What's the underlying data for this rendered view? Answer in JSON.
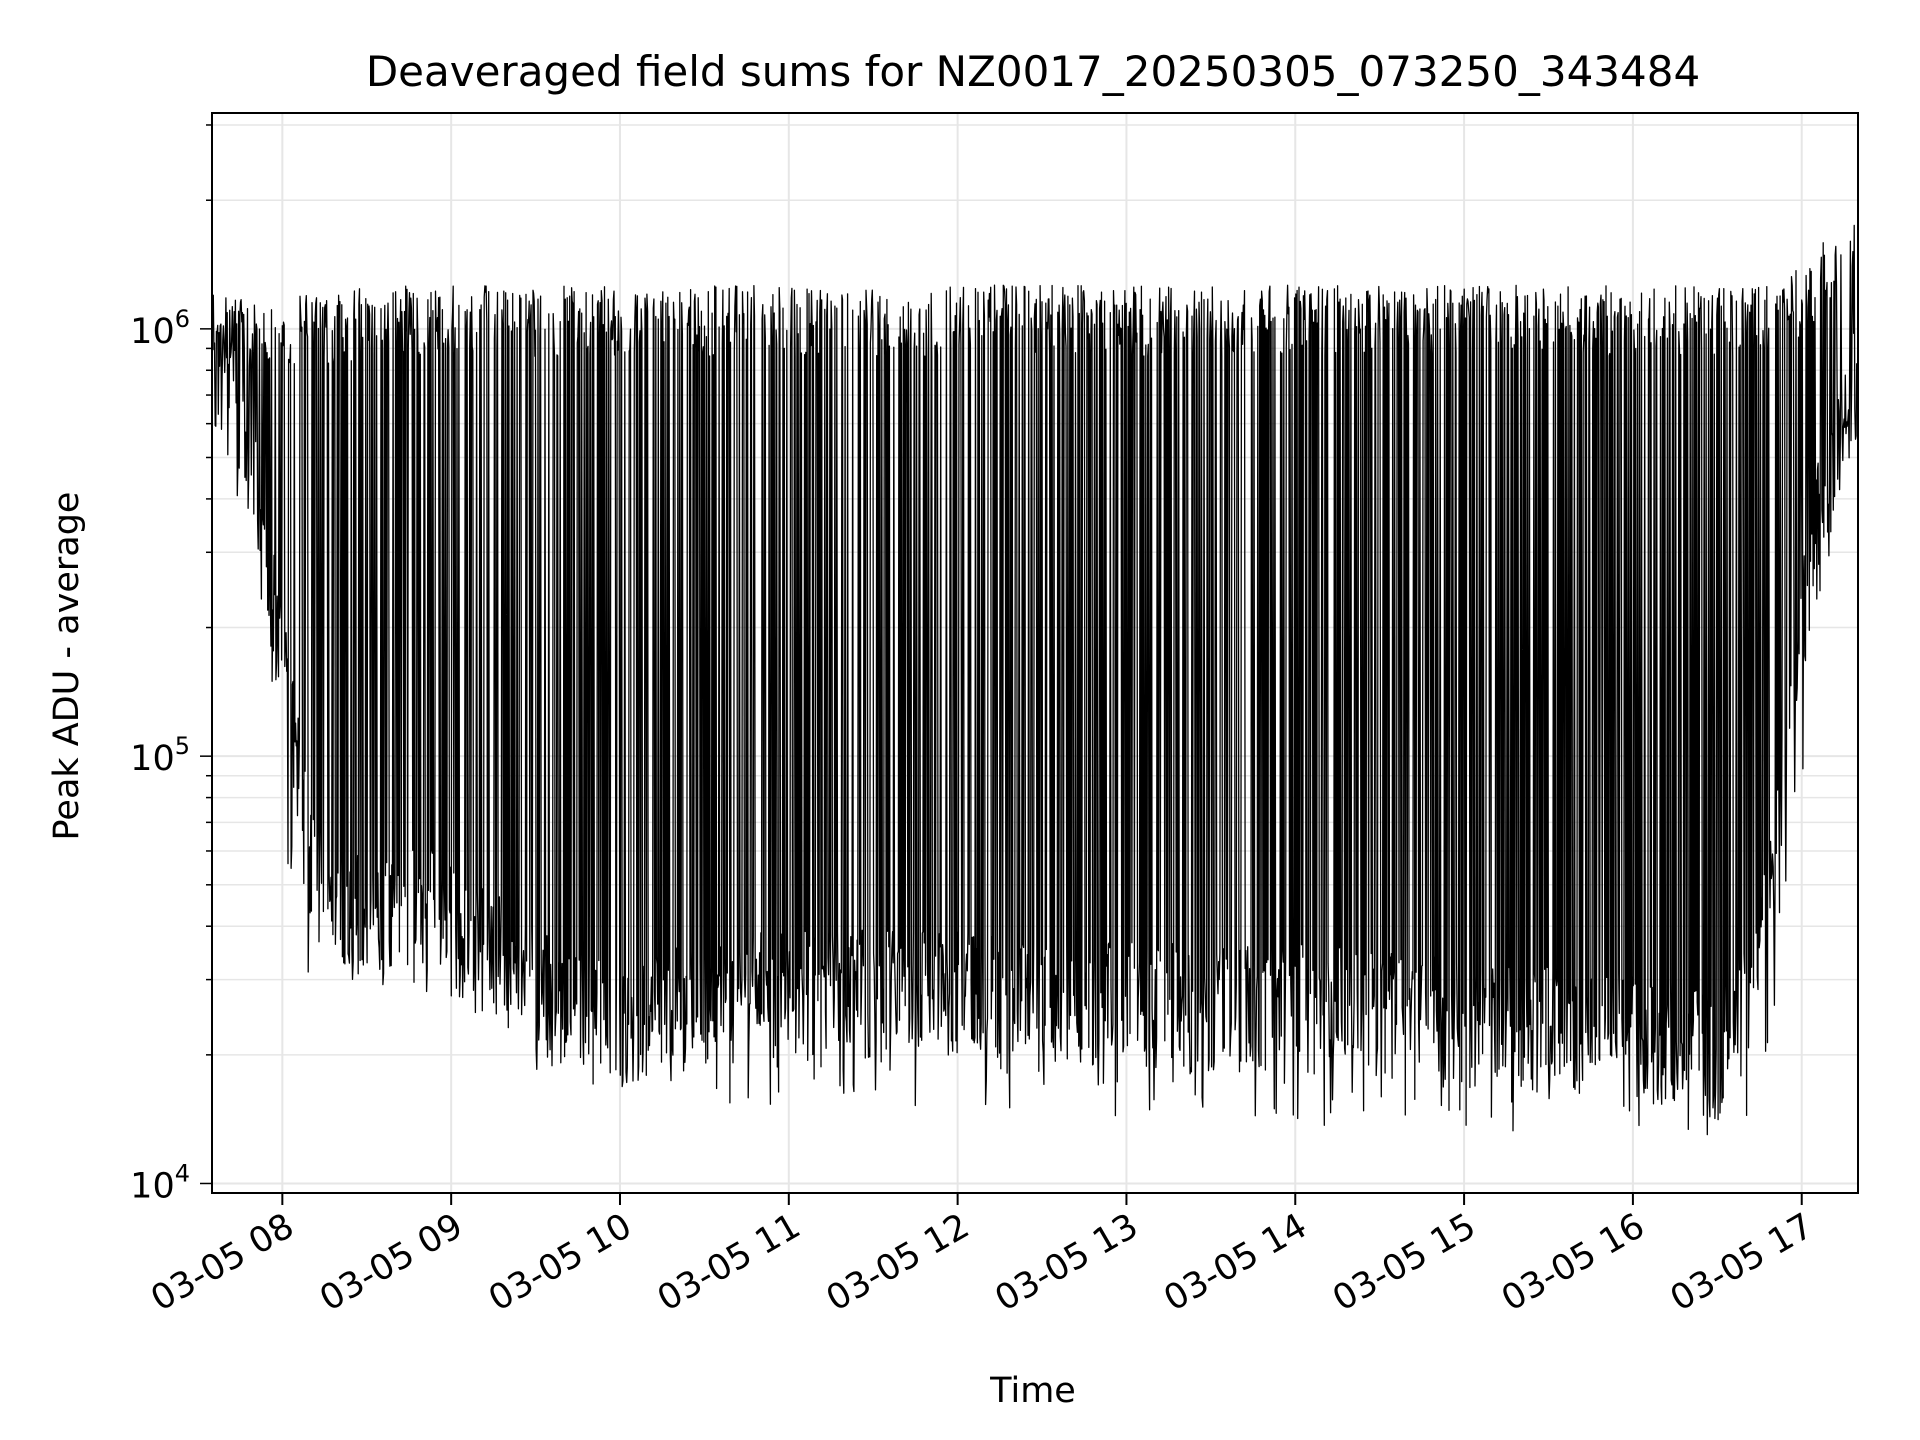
{
  "chart_data": {
    "type": "line",
    "title": "Deaveraged field sums for NZ0017_20250305_073250_343484",
    "xlabel": "Time",
    "ylabel": "Peak ADU - average",
    "yscale": "log",
    "xlim": [
      "2025-03-05 07:35",
      "2025-03-05 17:20"
    ],
    "ylim": [
      9500,
      3200000
    ],
    "grid": true,
    "line_color": "#000000",
    "grid_color": "#e6e6e6",
    "x_ticks": [
      {
        "value": "2025-03-05 08:00",
        "label": "03-05 08"
      },
      {
        "value": "2025-03-05 09:00",
        "label": "03-05 09"
      },
      {
        "value": "2025-03-05 10:00",
        "label": "03-05 10"
      },
      {
        "value": "2025-03-05 11:00",
        "label": "03-05 11"
      },
      {
        "value": "2025-03-05 12:00",
        "label": "03-05 12"
      },
      {
        "value": "2025-03-05 13:00",
        "label": "03-05 13"
      },
      {
        "value": "2025-03-05 14:00",
        "label": "03-05 14"
      },
      {
        "value": "2025-03-05 15:00",
        "label": "03-05 15"
      },
      {
        "value": "2025-03-05 16:00",
        "label": "03-05 16"
      },
      {
        "value": "2025-03-05 17:00",
        "label": "03-05 17"
      }
    ],
    "y_ticks": [
      {
        "value": 10000,
        "base": "10",
        "exp": "4"
      },
      {
        "value": 100000,
        "base": "10",
        "exp": "5"
      },
      {
        "value": 1000000,
        "base": "10",
        "exp": "6"
      }
    ],
    "series": [
      {
        "x": [
          "2025-03-05 07:35",
          "2025-03-05 07:40",
          "2025-03-05 07:50",
          "2025-03-05 08:00",
          "2025-03-05 08:05",
          "2025-03-05 08:10",
          "2025-03-05 08:20",
          "2025-03-05 08:30",
          "2025-03-05 08:40",
          "2025-03-05 08:50",
          "2025-03-05 09:00",
          "2025-03-05 09:15",
          "2025-03-05 09:30",
          "2025-03-05 09:45",
          "2025-03-05 10:00",
          "2025-03-05 10:30",
          "2025-03-05 11:00",
          "2025-03-05 11:30",
          "2025-03-05 12:00",
          "2025-03-05 12:30",
          "2025-03-05 13:00",
          "2025-03-05 13:30",
          "2025-03-05 14:00",
          "2025-03-05 14:30",
          "2025-03-05 15:00",
          "2025-03-05 15:30",
          "2025-03-05 16:00",
          "2025-03-05 16:30",
          "2025-03-05 16:45",
          "2025-03-05 16:55",
          "2025-03-05 17:05",
          "2025-03-05 17:15",
          "2025-03-05 17:20"
        ],
        "low": [
          850000,
          700000,
          420000,
          160000,
          95000,
          55000,
          45000,
          42000,
          40000,
          45000,
          40000,
          35000,
          28000,
          25000,
          24000,
          27000,
          28000,
          28000,
          28000,
          26000,
          27000,
          26000,
          26000,
          25000,
          24000,
          23000,
          22000,
          20000,
          30000,
          120000,
          350000,
          600000,
          800000
        ],
        "high": [
          1200000,
          1100000,
          1050000,
          1000000,
          1100000,
          1100000,
          1100000,
          1150000,
          1150000,
          1150000,
          1150000,
          1150000,
          1150000,
          1150000,
          1150000,
          1150000,
          1150000,
          1150000,
          1150000,
          1150000,
          1150000,
          1150000,
          1150000,
          1150000,
          1150000,
          1150000,
          1150000,
          1150000,
          1150000,
          1200000,
          1400000,
          1600000,
          2000000
        ],
        "floor_min": [
          700000,
          600000,
          300000,
          80000,
          40000,
          33000,
          33000,
          31000,
          30000,
          30000,
          28000,
          25000,
          20000,
          18000,
          16000,
          17000,
          17000,
          17000,
          16000,
          16000,
          15000,
          15000,
          15000,
          15000,
          15000,
          14000,
          15000,
          13000,
          15000,
          40000,
          200000,
          400000,
          600000
        ]
      }
    ]
  }
}
